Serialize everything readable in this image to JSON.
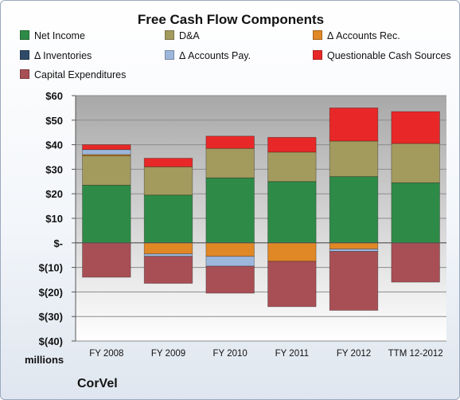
{
  "chart_data": {
    "type": "bar",
    "stacked": true,
    "title": "Free Cash Flow Components",
    "ylabel": "millions",
    "ylim": [
      -40,
      60
    ],
    "yticks": [
      {
        "value": 60,
        "label": "$60"
      },
      {
        "value": 50,
        "label": "$50"
      },
      {
        "value": 40,
        "label": "$40"
      },
      {
        "value": 30,
        "label": "$30"
      },
      {
        "value": 20,
        "label": "$20"
      },
      {
        "value": 10,
        "label": "$10"
      },
      {
        "value": 0,
        "label": "$-"
      },
      {
        "value": -10,
        "label": "$(10)"
      },
      {
        "value": -20,
        "label": "$(20)"
      },
      {
        "value": -30,
        "label": "$(30)"
      },
      {
        "value": -40,
        "label": "$(40)"
      }
    ],
    "categories": [
      "FY 2008",
      "FY 2009",
      "FY 2010",
      "FY 2011",
      "FY 2012",
      "TTM 12-2012"
    ],
    "grid": true,
    "legend_position": "top",
    "series": [
      {
        "name": "Net Income",
        "color": "#2e8b47",
        "values": [
          23.5,
          19.5,
          26.5,
          25,
          27,
          24.5
        ]
      },
      {
        "name": "D&A",
        "color": "#a39a5e",
        "values": [
          12,
          11.5,
          12,
          12,
          14.5,
          16
        ]
      },
      {
        "name": "Δ Accounts Rec.",
        "color": "#e08726",
        "values": [
          0.5,
          -4.5,
          -5.5,
          -7.5,
          -2.5,
          0
        ]
      },
      {
        "name": "Δ Inventories",
        "color": "#2e4a67",
        "values": [
          0,
          0,
          0,
          0,
          0,
          0
        ]
      },
      {
        "name": "Δ Accounts Pay.",
        "color": "#9db7dc",
        "values": [
          2,
          -1,
          -4,
          0,
          -1,
          0
        ]
      },
      {
        "name": "Questionable Cash Sources",
        "color": "#e82828",
        "values": [
          2,
          3.5,
          5,
          6,
          13.5,
          13
        ]
      },
      {
        "name": "Capital Expenditures",
        "color": "#a84f55",
        "values": [
          -14,
          -11,
          -11,
          -18.5,
          -24,
          -16
        ]
      }
    ],
    "source_label": "CorVel"
  }
}
